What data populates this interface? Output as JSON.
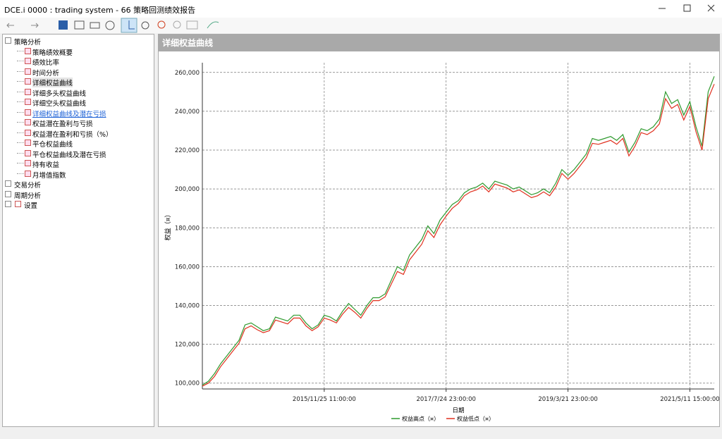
{
  "window": {
    "title": "DCE.i 0000 : trading system - 66 策略回测绩效报告"
  },
  "tree": [
    {
      "label": "策略分析",
      "children": [
        "策略绩效概要",
        "绩效比率",
        "时间分析",
        "详细权益曲线",
        "详细多头权益曲线",
        "详细空头权益曲线",
        "详细权益曲线及潜在亏损",
        "权益潜在盈利与亏损",
        "权益潜在盈利和亏损（%）",
        "平仓权益曲线",
        "平仓权益曲线及潜在亏损",
        "持有收益",
        "月增值指数"
      ]
    },
    {
      "label": "交易分析",
      "children": []
    },
    {
      "label": "周期分析",
      "children": []
    },
    {
      "label": "设置",
      "children": []
    }
  ],
  "panel": {
    "title": "详细权益曲线"
  },
  "chart_data": {
    "type": "line",
    "x_label": "日期",
    "y_label": "权益（¤）",
    "categories": [
      null,
      null,
      null,
      null,
      null,
      null,
      null,
      null,
      null,
      null,
      null,
      null,
      null,
      null,
      null,
      null,
      null,
      null,
      null,
      null,
      "2015/11/25 11:00:00",
      null,
      null,
      null,
      null,
      null,
      null,
      null,
      null,
      null,
      null,
      null,
      null,
      null,
      null,
      null,
      null,
      null,
      null,
      null,
      "2017/7/24 23:00:00",
      null,
      null,
      null,
      null,
      null,
      null,
      null,
      null,
      null,
      null,
      null,
      null,
      null,
      null,
      null,
      null,
      null,
      null,
      null,
      "2019/3/21 23:00:00",
      null,
      null,
      null,
      null,
      null,
      null,
      null,
      null,
      null,
      null,
      null,
      null,
      null,
      null,
      null,
      null,
      null,
      null,
      null,
      "2021/5/11 15:00:00",
      null,
      null,
      null,
      null
    ],
    "series": [
      {
        "name": "权益高点（¤）",
        "color": "#2e9a2e",
        "values": [
          99000,
          101000,
          105000,
          110000,
          114000,
          118000,
          122000,
          130000,
          131000,
          129000,
          127000,
          128000,
          134000,
          133000,
          132000,
          135000,
          135000,
          131000,
          128000,
          130000,
          135000,
          134000,
          132000,
          137000,
          141000,
          138000,
          135000,
          140000,
          144000,
          144000,
          146000,
          153000,
          160000,
          158000,
          166000,
          170000,
          174000,
          181000,
          177000,
          184000,
          188000,
          192000,
          194000,
          198000,
          200000,
          201000,
          203000,
          200000,
          204000,
          203000,
          202000,
          200000,
          201000,
          199000,
          197000,
          198000,
          200000,
          198000,
          203000,
          210000,
          207000,
          210000,
          214000,
          218000,
          226000,
          225000,
          226000,
          227000,
          225000,
          228000,
          219000,
          224000,
          231000,
          230000,
          232000,
          236000,
          250000,
          244000,
          246000,
          238000,
          245000,
          232000,
          222000,
          250000,
          258000
        ]
      },
      {
        "name": "权益低点（¤）",
        "color": "#e0301e",
        "values": [
          98500,
          100000,
          103500,
          108500,
          112500,
          116500,
          120500,
          128000,
          129500,
          127500,
          126000,
          127000,
          132500,
          131500,
          130500,
          133500,
          133500,
          129500,
          127000,
          129000,
          133500,
          132500,
          131000,
          135500,
          139000,
          136500,
          133500,
          138500,
          142500,
          142500,
          144500,
          151000,
          157500,
          156000,
          163500,
          167500,
          171500,
          178500,
          175000,
          181500,
          186000,
          190000,
          192500,
          196500,
          198500,
          199500,
          201500,
          198500,
          202500,
          201500,
          200500,
          198500,
          199500,
          197500,
          195500,
          196500,
          198500,
          196500,
          201000,
          208000,
          205000,
          208000,
          212000,
          216000,
          223500,
          223000,
          224000,
          225000,
          223000,
          226000,
          217000,
          222000,
          229000,
          228000,
          230000,
          233500,
          246500,
          241500,
          243500,
          235500,
          242500,
          229500,
          220000,
          246500,
          254000
        ]
      }
    ],
    "ylim": [
      97000,
      265000
    ],
    "yticks": [
      {
        "value": 100000,
        "label": "100,000"
      },
      {
        "value": 120000,
        "label": "120,000"
      },
      {
        "value": 140000,
        "label": "140,000"
      },
      {
        "value": 160000,
        "label": "160,000"
      },
      {
        "value": 180000,
        "label": "180,000"
      },
      {
        "value": 200000,
        "label": "200,000"
      },
      {
        "value": 220000,
        "label": "220,000"
      },
      {
        "value": 240000,
        "label": "240,000"
      },
      {
        "value": 260000,
        "label": "260,000"
      }
    ],
    "grid": true
  }
}
